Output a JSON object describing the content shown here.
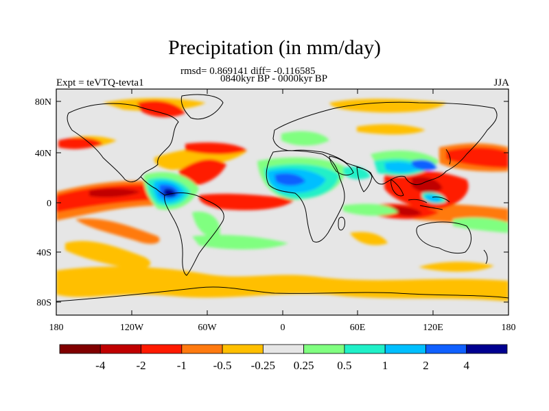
{
  "title": "Precipitation (in mm/day)",
  "stats_line": "rmsd= 0.869141  diff= -0.116585",
  "period_line": "0840kyr BP - 0000kyr BP",
  "experiment_label": "Expt = teVTQ-tevta1",
  "season_label": "JJA",
  "map": {
    "y_axis_labels": [
      "80N",
      "40N",
      "0",
      "40S",
      "80S"
    ],
    "x_axis_labels": [
      "180",
      "120W",
      "60W",
      "0",
      "60E",
      "120E",
      "180"
    ],
    "background_color": "#e6e6e6",
    "coast_color": "#000000"
  },
  "colorbar": {
    "colors": [
      "#800000",
      "#c00000",
      "#ff1a00",
      "#ff7a10",
      "#ffbf00",
      "#e6e6e6",
      "#80ff80",
      "#20f0c8",
      "#00bfff",
      "#1060ff",
      "#000090"
    ],
    "labels": [
      "-4",
      "-2",
      "-1",
      "-0.5",
      "-0.25",
      "0.25",
      "0.5",
      "1",
      "2",
      "4"
    ]
  }
}
